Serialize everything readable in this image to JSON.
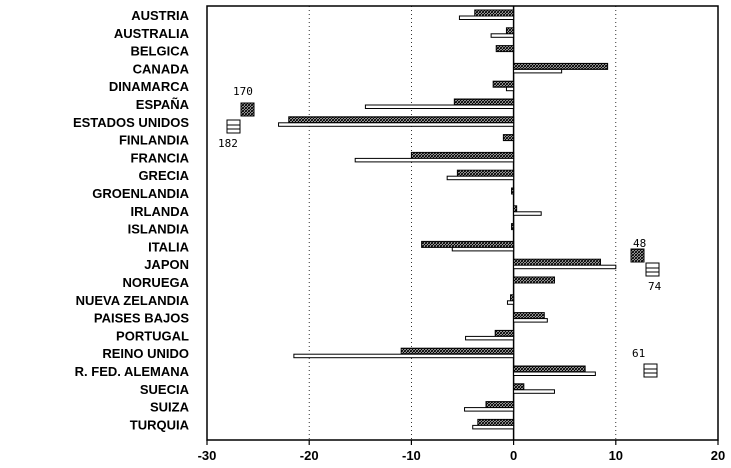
{
  "chart_data": {
    "type": "bar",
    "orientation": "horizontal",
    "categories": [
      "AUSTRIA",
      "AUSTRALIA",
      "BELGICA",
      "CANADA",
      "DINAMARCA",
      "ESPAÑA",
      "ESTADOS UNIDOS",
      "FINLANDIA",
      "FRANCIA",
      "GRECIA",
      "GROENLANDIA",
      "IRLANDA",
      "ISLANDIA",
      "ITALIA",
      "JAPON",
      "NORUEGA",
      "NUEVA ZELANDIA",
      "PAISES BAJOS",
      "PORTUGAL",
      "REINO UNIDO",
      "R. FED. ALEMANA",
      "SUECIA",
      "SUIZA",
      "TURQUIA"
    ],
    "series": [
      {
        "pattern": "hatched",
        "values": [
          -3.8,
          -0.7,
          -1.7,
          9.2,
          -2.0,
          -5.8,
          -22.0,
          -1.0,
          -10.0,
          -5.5,
          -0.2,
          0.3,
          -0.2,
          -9.0,
          8.5,
          4.0,
          -0.3,
          3.0,
          -1.8,
          -11.0,
          7.0,
          1.0,
          -2.7,
          -3.5
        ]
      },
      {
        "pattern": "outline",
        "values": [
          -5.3,
          -2.2,
          0.0,
          4.7,
          -0.7,
          -14.5,
          -23.0,
          0.0,
          -15.5,
          -6.5,
          0.0,
          2.7,
          0.0,
          -6.0,
          10.0,
          0.0,
          -0.6,
          3.3,
          -4.7,
          -21.5,
          8.0,
          4.0,
          -4.8,
          -4.0
        ]
      }
    ],
    "xlim": [
      -30,
      20
    ],
    "xticks": [
      "-30",
      "-20",
      "-10",
      "0",
      "10",
      "20"
    ],
    "grid_lines_at": [
      -20,
      -10,
      10
    ],
    "off_scale_annotations": [
      {
        "category": "ESPAÑA",
        "series": "hatched",
        "label": "170"
      },
      {
        "category": "ESTADOS UNIDOS",
        "series": "outline",
        "label": "182"
      },
      {
        "category": "ITALIA",
        "series": "hatched",
        "label": "48"
      },
      {
        "category": "JAPON",
        "series": "outline",
        "label": "74"
      },
      {
        "category": "R. FED. ALEMANA",
        "series": "outline",
        "label": "61"
      }
    ],
    "colors": {
      "axis": "#000000",
      "hatch": "#000000",
      "outline_fill": "#ffffff",
      "grid": "#000000"
    }
  }
}
